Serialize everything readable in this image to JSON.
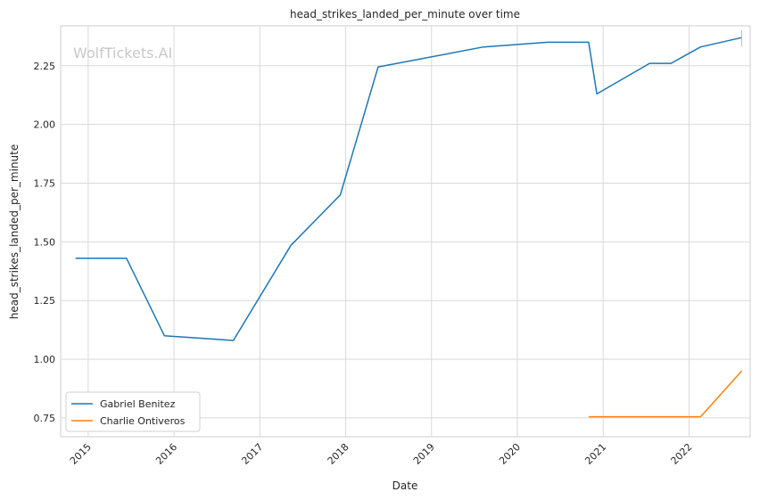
{
  "chart_data": {
    "type": "line",
    "title": "head_strikes_landed_per_minute over time",
    "xlabel": "Date",
    "ylabel": "head_strikes_landed_per_minute",
    "watermark": "WolfTickets.AI",
    "x_ticks": [
      "2015",
      "2016",
      "2017",
      "2018",
      "2019",
      "2020",
      "2021",
      "2022"
    ],
    "y_ticks": [
      "0.75",
      "1.00",
      "1.25",
      "1.50",
      "1.75",
      "2.00",
      "2.25"
    ],
    "xlim": [
      "2014-09-06",
      "2022-09-18"
    ],
    "ylim": [
      0.67,
      2.42
    ],
    "grid": true,
    "legend_position": "lower-left",
    "series": [
      {
        "name": "Gabriel Benitez",
        "color": "#1f77b4",
        "points": [
          [
            "2014-11-08",
            1.43
          ],
          [
            "2015-06-13",
            1.43
          ],
          [
            "2015-11-21",
            1.1
          ],
          [
            "2016-09-10",
            1.08
          ],
          [
            "2017-05-13",
            1.485
          ],
          [
            "2017-12-09",
            1.7
          ],
          [
            "2018-05-19",
            2.245
          ],
          [
            "2019-08-10",
            2.33
          ],
          [
            "2020-05-09",
            2.35
          ],
          [
            "2020-10-31",
            2.35
          ],
          [
            "2020-12-05",
            2.13
          ],
          [
            "2021-07-17",
            2.26
          ],
          [
            "2021-10-16",
            2.26
          ],
          [
            "2022-02-19",
            2.33
          ],
          [
            "2022-08-13",
            2.37
          ]
        ]
      },
      {
        "name": "Charlie Ontiveros",
        "color": "#ff7f0e",
        "points": [
          [
            "2020-10-31",
            0.755
          ],
          [
            "2022-02-19",
            0.755
          ],
          [
            "2022-08-13",
            0.95
          ]
        ]
      }
    ]
  }
}
